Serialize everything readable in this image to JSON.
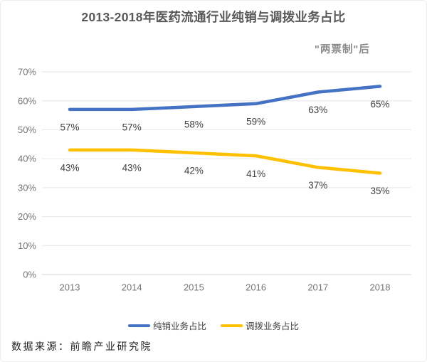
{
  "title": "2013-2018年医药流通行业纯销与调拨业务占比",
  "annotation": "\"两票制\"后",
  "source": "数据来源：前瞻产业研究院",
  "colors": {
    "blue": "#4472C4",
    "gold": "#FFC000",
    "grid": "#e6e6e6",
    "axis": "#d6d6d6",
    "tick_text": "#757575",
    "label_text": "#404040",
    "title_text": "#595959",
    "annotation_text": "#8a8a8a"
  },
  "chart_data": {
    "type": "line",
    "title": "2013-2018年医药流通行业纯销与调拨业务占比",
    "categories": [
      "2013",
      "2014",
      "2015",
      "2016",
      "2017",
      "2018"
    ],
    "series": [
      {
        "key": "pure-sales",
        "name": "纯销业务占比",
        "color": "#4472C4",
        "values": [
          57,
          57,
          58,
          59,
          63,
          65
        ]
      },
      {
        "key": "allocation",
        "name": "调拨业务占比",
        "color": "#FFC000",
        "values": [
          43,
          43,
          42,
          41,
          37,
          35
        ]
      }
    ],
    "xlabel": "",
    "ylabel": "",
    "ylim": [
      0,
      70
    ],
    "ytick_step": 10,
    "ytick_suffix": "%",
    "grid": true,
    "data_labels": true,
    "legend_position": "bottom",
    "annotations": [
      {
        "text": "\"两票制\"后",
        "position": "top-right"
      }
    ]
  }
}
